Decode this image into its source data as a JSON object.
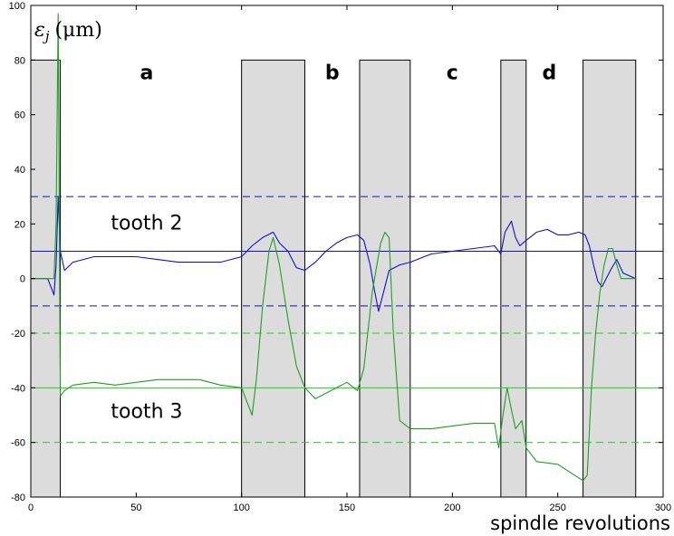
{
  "chart_data": {
    "type": "line",
    "xlabel": "spindle revolutions",
    "ylabel": "ε_j (μm)",
    "ylabel_symbol": "ε",
    "ylabel_subscript": "j",
    "ylabel_unit": "(μm)",
    "xlim": [
      0,
      300
    ],
    "ylim": [
      -80,
      100
    ],
    "x_ticks": [
      0,
      50,
      100,
      150,
      200,
      250,
      300
    ],
    "y_ticks": [
      -80,
      -60,
      -40,
      -20,
      0,
      20,
      40,
      60,
      80,
      100
    ],
    "grid": false,
    "shaded_regions": [
      {
        "x0": 0,
        "x1": 14,
        "y0": -80,
        "y1": 80
      },
      {
        "x0": 100,
        "x1": 130,
        "y0": -80,
        "y1": 80
      },
      {
        "x0": 156,
        "x1": 180,
        "y0": -80,
        "y1": 80
      },
      {
        "x0": 223,
        "x1": 235,
        "y0": -80,
        "y1": 80
      },
      {
        "x0": 262,
        "x1": 287,
        "y0": -80,
        "y1": 80
      }
    ],
    "region_labels": [
      {
        "text": "a",
        "x": 55,
        "y": 73
      },
      {
        "text": "b",
        "x": 143,
        "y": 73
      },
      {
        "text": "c",
        "x": 200,
        "y": 73
      },
      {
        "text": "d",
        "x": 246,
        "y": 73
      }
    ],
    "annotations": [
      {
        "text": "tooth 2",
        "x": 38,
        "y": 18
      },
      {
        "text": "tooth 3",
        "x": 38,
        "y": -51
      }
    ],
    "reference_lines": [
      {
        "y": 10,
        "color": "#1010d0",
        "style": "solid"
      },
      {
        "y": 30,
        "color": "#1010d0",
        "style": "dashed"
      },
      {
        "y": -10,
        "color": "#1010d0",
        "style": "dashed"
      },
      {
        "y": -40,
        "color": "#20d020",
        "style": "solid"
      },
      {
        "y": -20,
        "color": "#20d020",
        "style": "dashed"
      },
      {
        "y": -60,
        "color": "#20d020",
        "style": "dashed"
      }
    ],
    "series": [
      {
        "color": "#1010d0",
        "points": [
          [
            0,
            0
          ],
          [
            8,
            0
          ],
          [
            10,
            -4
          ],
          [
            11,
            -6
          ],
          [
            12,
            5
          ],
          [
            13,
            30
          ],
          [
            14,
            10
          ],
          [
            16,
            3
          ],
          [
            20,
            6
          ],
          [
            30,
            8
          ],
          [
            40,
            8
          ],
          [
            50,
            8
          ],
          [
            60,
            7
          ],
          [
            70,
            6
          ],
          [
            80,
            6
          ],
          [
            90,
            6
          ],
          [
            95,
            7
          ],
          [
            100,
            8
          ],
          [
            105,
            12
          ],
          [
            110,
            15
          ],
          [
            115,
            17
          ],
          [
            118,
            13
          ],
          [
            122,
            10
          ],
          [
            126,
            4
          ],
          [
            130,
            3
          ],
          [
            135,
            6
          ],
          [
            140,
            10
          ],
          [
            145,
            13
          ],
          [
            150,
            15
          ],
          [
            155,
            16
          ],
          [
            158,
            14
          ],
          [
            161,
            5
          ],
          [
            163,
            -4
          ],
          [
            165,
            -12
          ],
          [
            167,
            -6
          ],
          [
            170,
            3
          ],
          [
            175,
            5
          ],
          [
            180,
            6
          ],
          [
            190,
            9
          ],
          [
            200,
            10
          ],
          [
            210,
            11
          ],
          [
            220,
            12
          ],
          [
            223,
            9
          ],
          [
            225,
            17
          ],
          [
            228,
            21
          ],
          [
            230,
            15
          ],
          [
            232,
            12
          ],
          [
            235,
            14
          ],
          [
            240,
            17
          ],
          [
            245,
            18
          ],
          [
            250,
            16
          ],
          [
            255,
            16
          ],
          [
            260,
            17
          ],
          [
            263,
            16
          ],
          [
            265,
            12
          ],
          [
            267,
            5
          ],
          [
            269,
            -1
          ],
          [
            271,
            -3
          ],
          [
            275,
            3
          ],
          [
            278,
            7
          ],
          [
            281,
            2
          ],
          [
            287,
            0
          ]
        ]
      },
      {
        "color": "#20a020",
        "points": [
          [
            0,
            0
          ],
          [
            8,
            0
          ],
          [
            11,
            0
          ],
          [
            12,
            20
          ],
          [
            13,
            97
          ],
          [
            14,
            -43
          ],
          [
            16,
            -41
          ],
          [
            20,
            -39
          ],
          [
            30,
            -38
          ],
          [
            40,
            -39
          ],
          [
            50,
            -38
          ],
          [
            60,
            -37
          ],
          [
            70,
            -37
          ],
          [
            80,
            -37
          ],
          [
            90,
            -39
          ],
          [
            100,
            -40
          ],
          [
            103,
            -46
          ],
          [
            105,
            -50
          ],
          [
            107,
            -37
          ],
          [
            110,
            -10
          ],
          [
            113,
            10
          ],
          [
            115,
            15
          ],
          [
            118,
            5
          ],
          [
            122,
            -15
          ],
          [
            126,
            -32
          ],
          [
            130,
            -40
          ],
          [
            135,
            -44
          ],
          [
            140,
            -42
          ],
          [
            145,
            -40
          ],
          [
            150,
            -38
          ],
          [
            155,
            -41
          ],
          [
            158,
            -33
          ],
          [
            162,
            -5
          ],
          [
            166,
            13
          ],
          [
            168,
            17
          ],
          [
            170,
            15
          ],
          [
            172,
            -20
          ],
          [
            175,
            -52
          ],
          [
            180,
            -55
          ],
          [
            190,
            -55
          ],
          [
            200,
            -54
          ],
          [
            210,
            -53
          ],
          [
            220,
            -53
          ],
          [
            222,
            -62
          ],
          [
            224,
            -50
          ],
          [
            226,
            -40
          ],
          [
            228,
            -48
          ],
          [
            230,
            -55
          ],
          [
            233,
            -52
          ],
          [
            235,
            -62
          ],
          [
            240,
            -67
          ],
          [
            250,
            -68
          ],
          [
            260,
            -73
          ],
          [
            262,
            -74
          ],
          [
            264,
            -72
          ],
          [
            266,
            -40
          ],
          [
            268,
            -20
          ],
          [
            270,
            -5
          ],
          [
            272,
            5
          ],
          [
            274,
            11
          ],
          [
            276,
            11
          ],
          [
            278,
            5
          ],
          [
            280,
            0
          ],
          [
            287,
            0
          ]
        ]
      }
    ]
  }
}
